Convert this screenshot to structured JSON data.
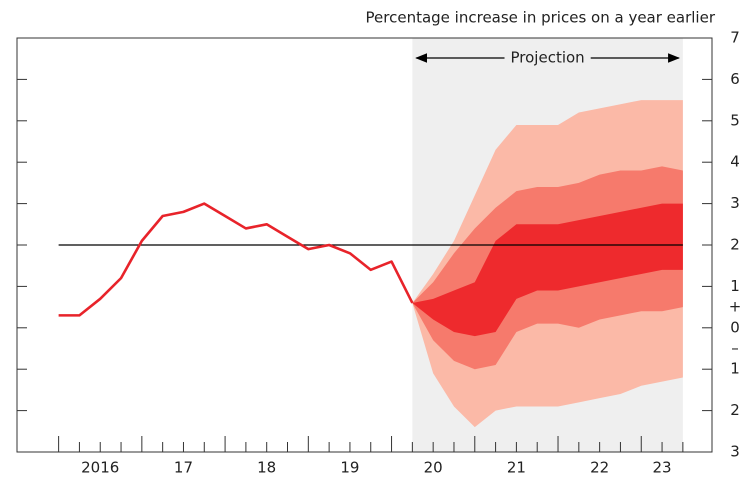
{
  "chart_data": {
    "type": "fan",
    "title": "Percentage increase in prices on a year earlier",
    "xlim": [
      2015.5,
      2023.85
    ],
    "ylim": [
      -3,
      7
    ],
    "yticks": [
      {
        "value": -3,
        "label": "3"
      },
      {
        "value": -2,
        "label": "2"
      },
      {
        "value": -1,
        "label": "1"
      },
      0,
      1,
      2,
      3,
      4,
      5,
      6,
      7
    ],
    "sign_labels": [
      "+",
      "–"
    ],
    "xticks": [
      {
        "value": 2016.5,
        "label": "2016"
      },
      {
        "value": 2017.5,
        "label": "17"
      },
      {
        "value": 2018.5,
        "label": "18"
      },
      {
        "value": 2019.5,
        "label": "19"
      },
      {
        "value": 2020.5,
        "label": "20"
      },
      {
        "value": 2021.5,
        "label": "21"
      },
      {
        "value": 2022.5,
        "label": "22"
      },
      {
        "value": 2023.25,
        "label": "23"
      }
    ],
    "minor_xticks": [
      2016,
      2016.25,
      2016.5,
      2016.75,
      2017,
      2017.25,
      2017.5,
      2017.75,
      2018,
      2018.25,
      2018.5,
      2018.75,
      2019,
      2019.25,
      2019.5,
      2019.75,
      2020,
      2020.25,
      2020.5,
      2020.75,
      2021,
      2021.25,
      2021.5,
      2021.75,
      2022,
      2022.25,
      2022.5,
      2022.75,
      2023,
      2023.25,
      2023.5
    ],
    "reference_line": 2,
    "projection": {
      "label": "Projection",
      "start": 2020.25,
      "end": 2023.5,
      "color": "#efefef"
    },
    "series": [
      {
        "color": "#e8232a",
        "x": [
          2016,
          2016.25,
          2016.5,
          2016.75,
          2017,
          2017.25,
          2017.5,
          2017.75,
          2018,
          2018.25,
          2018.5,
          2018.75,
          2019,
          2019.25,
          2019.5,
          2019.75,
          2020,
          2020.25
        ],
        "values": [
          0.3,
          0.3,
          0.7,
          1.2,
          2.1,
          2.7,
          2.8,
          3.0,
          2.7,
          2.4,
          2.5,
          2.2,
          1.9,
          2.0,
          1.8,
          1.4,
          1.6,
          0.6
        ]
      }
    ],
    "fan": {
      "x": [
        2020.25,
        2020.5,
        2020.75,
        2021,
        2021.25,
        2021.5,
        2021.75,
        2022,
        2022.25,
        2022.5,
        2022.75,
        2023,
        2023.25,
        2023.5
      ],
      "bands": [
        {
          "color": "#fbb9a7",
          "upper": [
            0.6,
            1.3,
            2.1,
            3.2,
            4.3,
            4.9,
            4.9,
            4.9,
            5.2,
            5.3,
            5.4,
            5.5,
            5.5,
            5.5
          ],
          "lower": [
            0.6,
            -1.1,
            -1.9,
            -2.4,
            -2.0,
            -1.9,
            -1.9,
            -1.9,
            -1.8,
            -1.7,
            -1.6,
            -1.4,
            -1.3,
            -1.2
          ]
        },
        {
          "color": "#f67a6c",
          "upper": [
            0.6,
            1.1,
            1.8,
            2.4,
            2.9,
            3.3,
            3.4,
            3.4,
            3.5,
            3.7,
            3.8,
            3.8,
            3.9,
            3.8
          ],
          "lower": [
            0.6,
            -0.3,
            -0.8,
            -1.0,
            -0.9,
            -0.1,
            0.1,
            0.1,
            0.0,
            0.2,
            0.3,
            0.4,
            0.4,
            0.5
          ]
        },
        {
          "color": "#ee2a2d",
          "upper": [
            0.6,
            0.7,
            0.9,
            1.1,
            2.1,
            2.5,
            2.5,
            2.5,
            2.6,
            2.7,
            2.8,
            2.9,
            3.0,
            3.0
          ],
          "lower": [
            0.6,
            0.2,
            -0.1,
            -0.2,
            -0.1,
            0.7,
            0.9,
            0.9,
            1.0,
            1.1,
            1.2,
            1.3,
            1.4,
            1.4
          ]
        }
      ]
    }
  }
}
